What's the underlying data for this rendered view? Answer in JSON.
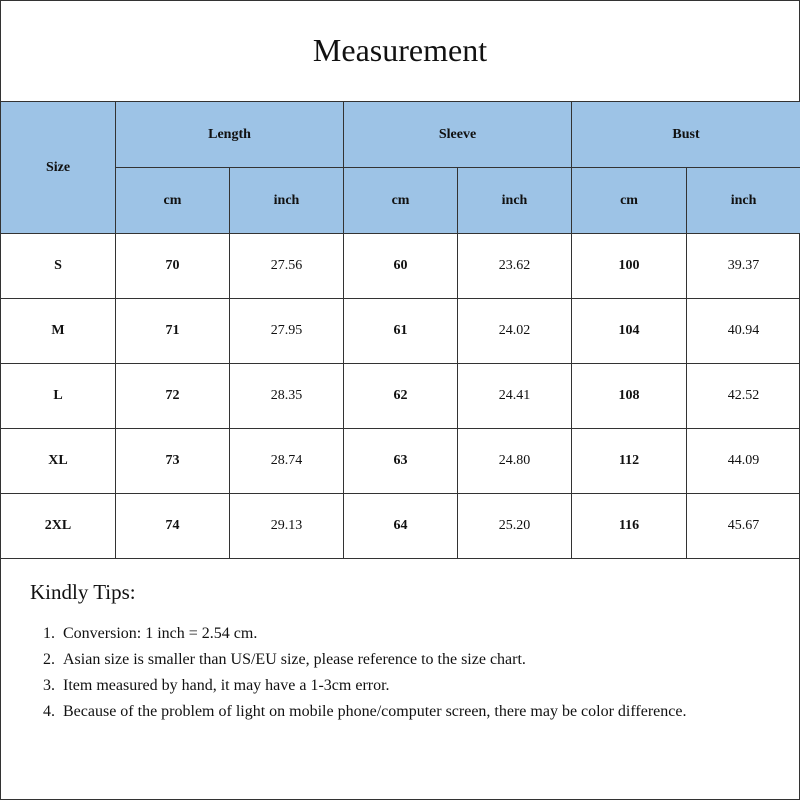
{
  "title": "Measurement",
  "colors": {
    "header_bg": "#9dc3e6",
    "border": "#333333"
  },
  "table": {
    "size_header": "Size",
    "groups": [
      "Length",
      "Sleeve",
      "Bust"
    ],
    "units": [
      "cm",
      "inch",
      "cm",
      "inch",
      "cm",
      "inch"
    ],
    "rows": [
      [
        "S",
        "70",
        "27.56",
        "60",
        "23.62",
        "100",
        "39.37"
      ],
      [
        "M",
        "71",
        "27.95",
        "61",
        "24.02",
        "104",
        "40.94"
      ],
      [
        "L",
        "72",
        "28.35",
        "62",
        "24.41",
        "108",
        "42.52"
      ],
      [
        "XL",
        "73",
        "28.74",
        "63",
        "24.80",
        "112",
        "44.09"
      ],
      [
        "2XL",
        "74",
        "29.13",
        "64",
        "25.20",
        "116",
        "45.67"
      ]
    ]
  },
  "tips": {
    "title": "Kindly Tips:",
    "items": [
      "Conversion: 1 inch = 2.54 cm.",
      "Asian size is smaller than US/EU size, please reference to the size chart.",
      "Item measured by hand, it may have a 1-3cm error.",
      "Because of the problem of light on mobile phone/computer screen, there may be color difference."
    ]
  }
}
